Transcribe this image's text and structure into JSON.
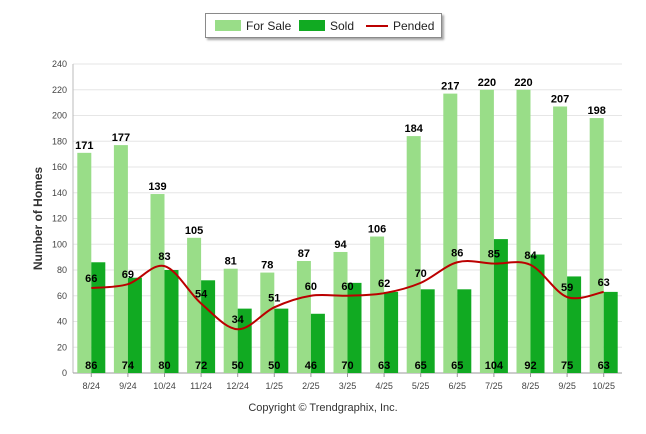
{
  "chart_data": {
    "type": "bar",
    "title": "",
    "xlabel": "",
    "ylabel": "Number of Homes",
    "ylim": [
      0,
      240
    ],
    "yticks": [
      0,
      20,
      40,
      60,
      80,
      100,
      120,
      140,
      160,
      180,
      200,
      220,
      240
    ],
    "grid": true,
    "legend_position": "top-center",
    "categories": [
      "8/24",
      "9/24",
      "10/24",
      "11/24",
      "12/24",
      "1/25",
      "2/25",
      "3/25",
      "4/25",
      "5/25",
      "6/25",
      "7/25",
      "8/25",
      "9/25",
      "10/25"
    ],
    "series": [
      {
        "name": "For Sale",
        "kind": "bar",
        "color": "#99dd88",
        "values": [
          171,
          177,
          139,
          105,
          81,
          78,
          87,
          94,
          106,
          184,
          217,
          220,
          220,
          207,
          198
        ]
      },
      {
        "name": "Sold",
        "kind": "bar",
        "color": "#11aa22",
        "values": [
          86,
          74,
          80,
          72,
          50,
          50,
          46,
          70,
          63,
          65,
          65,
          104,
          92,
          75,
          63
        ]
      },
      {
        "name": "Pended",
        "kind": "line",
        "color": "#bb0000",
        "values": [
          66,
          69,
          83,
          54,
          34,
          51,
          60,
          60,
          62,
          70,
          86,
          85,
          84,
          59,
          63
        ]
      }
    ]
  },
  "footer": {
    "copyright": "Copyright © Trendgraphix, Inc."
  }
}
